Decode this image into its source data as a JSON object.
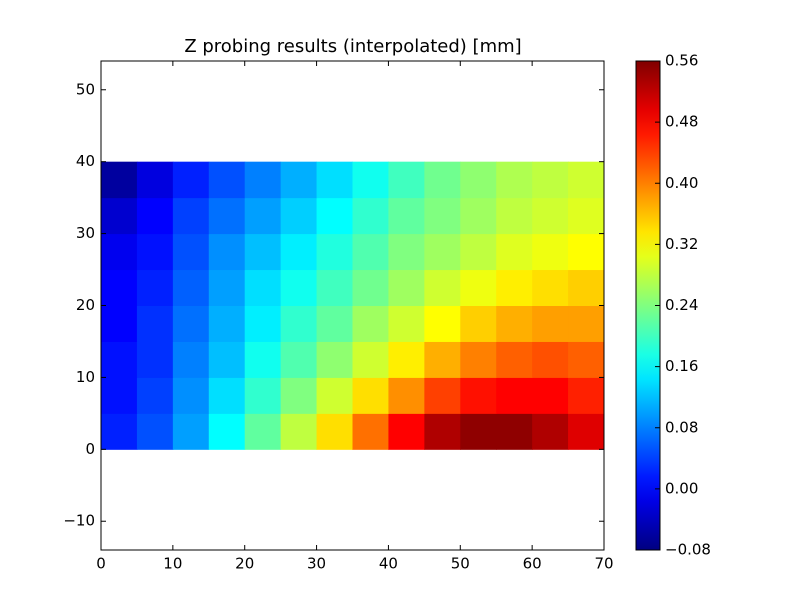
{
  "chart_data": {
    "type": "heatmap",
    "title": "Z probing results (interpolated) [mm]",
    "colormap": "jet",
    "x_edges": [
      0,
      5,
      10,
      15,
      20,
      25,
      30,
      35,
      40,
      45,
      50,
      55,
      60,
      65,
      70
    ],
    "y_edges": [
      0,
      5,
      10,
      15,
      20,
      25,
      30,
      35,
      40
    ],
    "z": [
      [
        0.02,
        0.05,
        0.1,
        0.16,
        0.22,
        0.28,
        0.34,
        0.41,
        0.48,
        0.53,
        0.55,
        0.55,
        0.53,
        0.5
      ],
      [
        0.01,
        0.04,
        0.09,
        0.14,
        0.19,
        0.24,
        0.29,
        0.34,
        0.39,
        0.44,
        0.47,
        0.48,
        0.48,
        0.46
      ],
      [
        0.01,
        0.03,
        0.08,
        0.12,
        0.17,
        0.21,
        0.25,
        0.29,
        0.33,
        0.37,
        0.4,
        0.42,
        0.43,
        0.42
      ],
      [
        0.0,
        0.03,
        0.07,
        0.11,
        0.15,
        0.19,
        0.22,
        0.26,
        0.29,
        0.32,
        0.35,
        0.37,
        0.38,
        0.38
      ],
      [
        0.0,
        0.02,
        0.06,
        0.1,
        0.14,
        0.17,
        0.2,
        0.23,
        0.26,
        0.29,
        0.31,
        0.33,
        0.34,
        0.35
      ],
      [
        -0.01,
        0.01,
        0.05,
        0.09,
        0.12,
        0.15,
        0.18,
        0.21,
        0.24,
        0.26,
        0.28,
        0.3,
        0.31,
        0.32
      ],
      [
        -0.03,
        0.0,
        0.04,
        0.07,
        0.1,
        0.13,
        0.16,
        0.19,
        0.22,
        0.24,
        0.26,
        0.28,
        0.29,
        0.3
      ],
      [
        -0.06,
        -0.02,
        0.02,
        0.05,
        0.08,
        0.11,
        0.14,
        0.17,
        0.2,
        0.23,
        0.25,
        0.27,
        0.28,
        0.29
      ]
    ],
    "xlim": [
      0,
      70
    ],
    "xticks": [
      0,
      10,
      20,
      30,
      40,
      50,
      60,
      70
    ],
    "ylim": [
      -14,
      54
    ],
    "yticks": [
      {
        "value": -10,
        "label": "−10"
      },
      0,
      10,
      20,
      30,
      40,
      50
    ],
    "clim": [
      -0.08,
      0.56
    ],
    "cticks": [
      {
        "value": -0.08,
        "label": "−0.08"
      },
      {
        "value": 0,
        "label": "0.00"
      },
      {
        "value": 0.08,
        "label": "0.08"
      },
      {
        "value": 0.16,
        "label": "0.16"
      },
      {
        "value": 0.24,
        "label": "0.24"
      },
      {
        "value": 0.32,
        "label": "0.32"
      },
      {
        "value": 0.4,
        "label": "0.40"
      },
      {
        "value": 0.48,
        "label": "0.48"
      },
      {
        "value": 0.56,
        "label": "0.56"
      }
    ]
  }
}
